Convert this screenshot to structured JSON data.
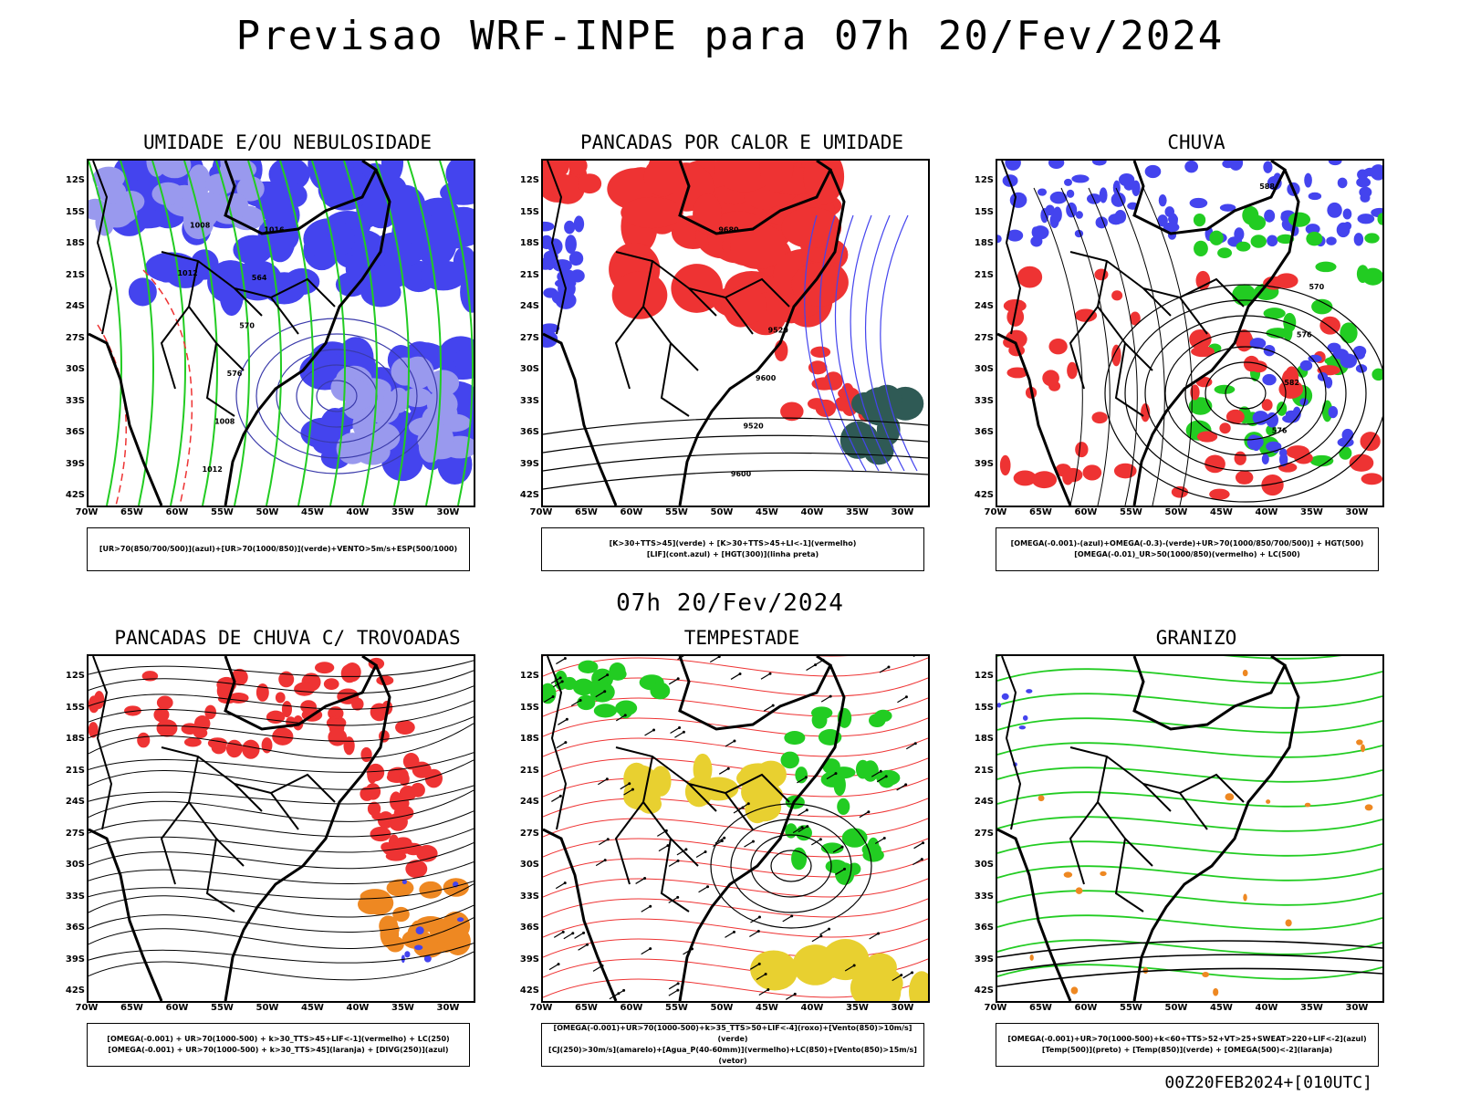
{
  "page": {
    "title": "Previsao WRF-INPE  para 07h 20/Fev/2024",
    "mid_date": "07h 20/Fev/2024",
    "footer": "00Z20FEB2024+[010UTC]"
  },
  "axes": {
    "lat_labels": [
      "12S",
      "15S",
      "18S",
      "21S",
      "24S",
      "27S",
      "30S",
      "33S",
      "36S",
      "39S",
      "42S"
    ],
    "lon_labels": [
      "70W",
      "65W",
      "60W",
      "55W",
      "50W",
      "45W",
      "40W",
      "35W",
      "30W"
    ]
  },
  "colors": {
    "blue": "#4444ee",
    "lightblue": "#9999ee",
    "green": "#22cc22",
    "red": "#ee3333",
    "orange": "#ee8822",
    "darkteal": "#2f5a55",
    "yellow": "#e8d030"
  },
  "panels": [
    {
      "id": "umidade",
      "title": "UMIDADE E/OU NEBULOSIDADE",
      "legend": [
        "[UR>70(850/700/500)](azul)+[UR>70(1000/850)](verde)+VENTO>5m/s+ESP(500/1000)"
      ],
      "contour_labels": [
        "1012",
        "1008",
        "1012",
        "1008",
        "576",
        "570",
        "564",
        "1016"
      ]
    },
    {
      "id": "pancadas-calor",
      "title": "PANCADAS POR CALOR E UMIDADE",
      "legend": [
        "[K>30+TTS>45](verde) + [K>30+TTS>45+LI<-1](vermelho)",
        "[LIF](cont.azul) + [HGT(300)](linha preta)"
      ],
      "contour_labels": [
        "9680",
        "9600",
        "9520",
        "9600",
        "9520"
      ]
    },
    {
      "id": "chuva",
      "title": "CHUVA",
      "legend": [
        "[OMEGA(-0.001)-(azul)+OMEGA(-0.3)-(verde)+UR>70(1000/850/700/500)] + HGT(500)",
        "[OMEGA(-0.01)_UR>50(1000/850)(vermelho) + LC(500)"
      ],
      "contour_labels": [
        "588",
        "576",
        "582",
        "576",
        "570"
      ]
    },
    {
      "id": "pancadas-trovoadas",
      "title": "PANCADAS DE CHUVA C/ TROVOADAS",
      "legend": [
        "[OMEGA(-0.001) + UR>70(1000-500) + k>30_TTS>45+LIF<-1](vermelho) + LC(250)",
        "[OMEGA(-0.001) + UR>70(1000-500) + k>30_TTS>45](laranja) + [DIVG(250)](azul)"
      ],
      "contour_labels": []
    },
    {
      "id": "tempestade",
      "title": "TEMPESTADE",
      "legend": [
        "[OMEGA(-0.001)+UR>70(1000-500)+k>35_TTS>50+LIF<-4](roxo)+[Vento(850)>10m/s](verde)",
        "[CJ(250)>30m/s](amarelo)+[Agua_P(40-60mm)](vermelho)+LC(850)+[Vento(850)>15m/s](vetor)"
      ],
      "contour_labels": []
    },
    {
      "id": "granizo",
      "title": "GRANIZO",
      "legend": [
        "[OMEGA(-0.001)+UR>70(1000-500)+k<60+TTS>52+VT>25+SWEAT>220+LIF<-2](azul)",
        "[Temp(500)](preto) + [Temp(850)](verde) + [OMEGA(500)<-2](laranja)"
      ],
      "contour_labels": []
    }
  ]
}
